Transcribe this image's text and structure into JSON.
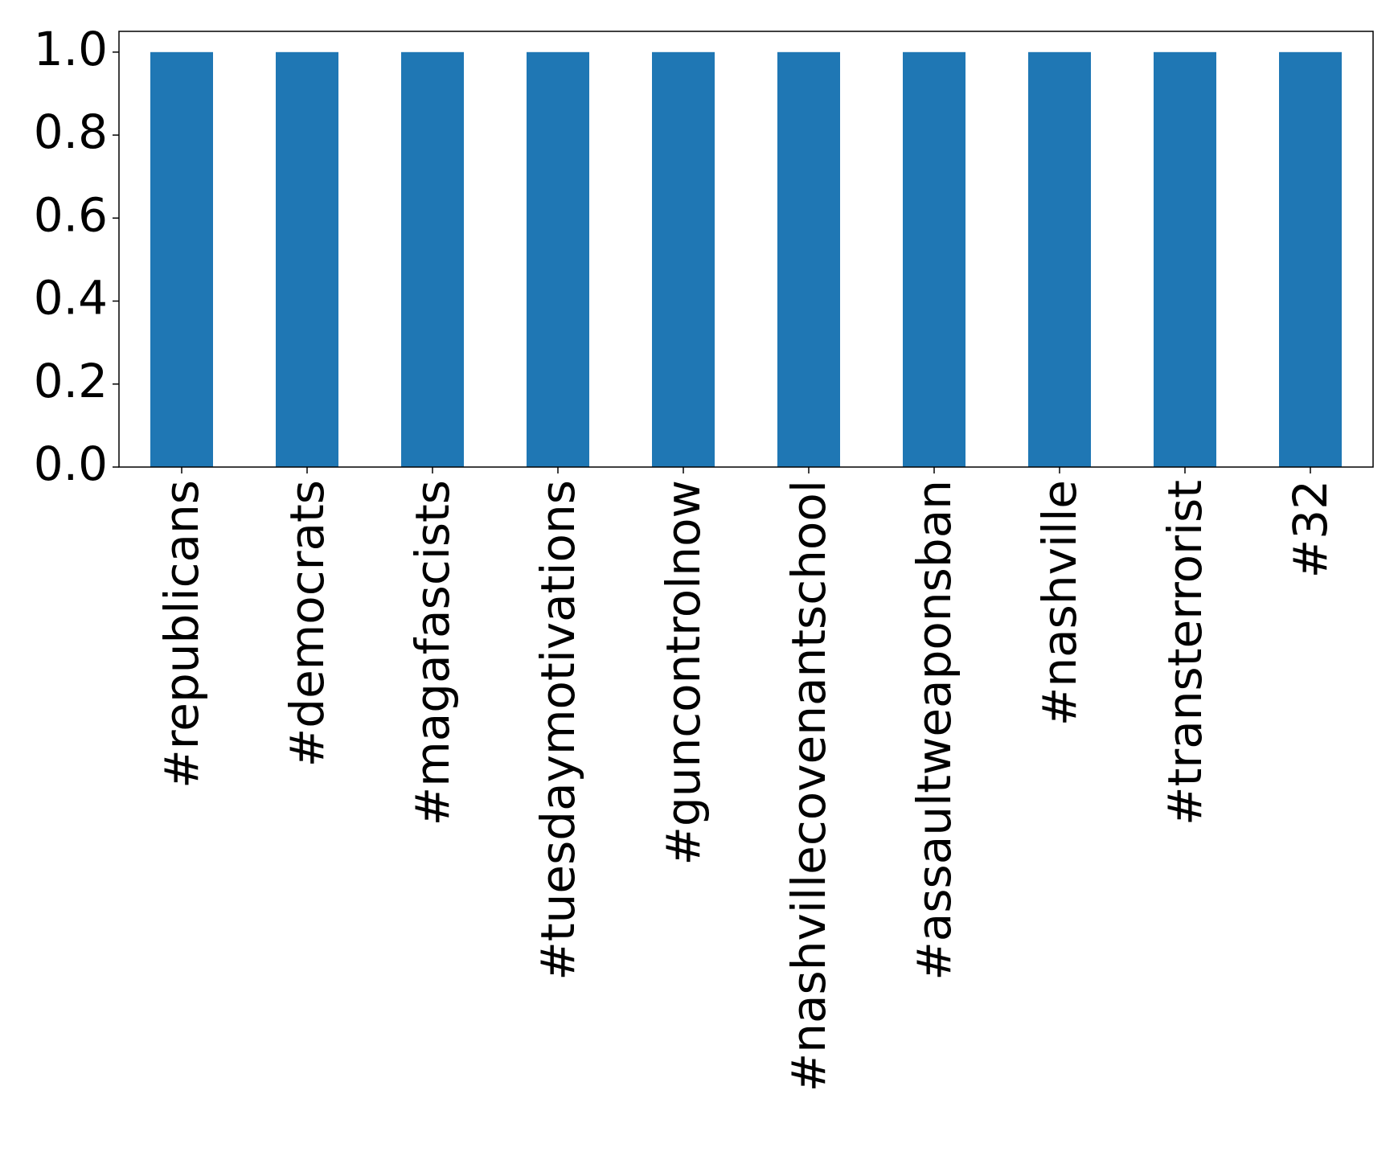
{
  "chart_data": {
    "type": "bar",
    "categories": [
      "#republicans",
      "#democrats",
      "#magafascists",
      "#tuesdaymotivations",
      "#guncontrolnow",
      "#nashvillecovenantschool",
      "#assaultweaponsban",
      "#nashville",
      "#transterrorist",
      "#32"
    ],
    "values": [
      1,
      1,
      1,
      1,
      1,
      1,
      1,
      1,
      1,
      1
    ],
    "color": "#1f77b4",
    "ylim": [
      0,
      1.05
    ],
    "yticks": [
      {
        "value": 0,
        "label": "0.0"
      },
      {
        "value": 0.2,
        "label": "0.2"
      },
      {
        "value": 0.4,
        "label": "0.4"
      },
      {
        "value": 0.6,
        "label": "0.6"
      },
      {
        "value": 0.8,
        "label": "0.8"
      },
      {
        "value": 1,
        "label": "1.0"
      }
    ],
    "grid": false
  }
}
